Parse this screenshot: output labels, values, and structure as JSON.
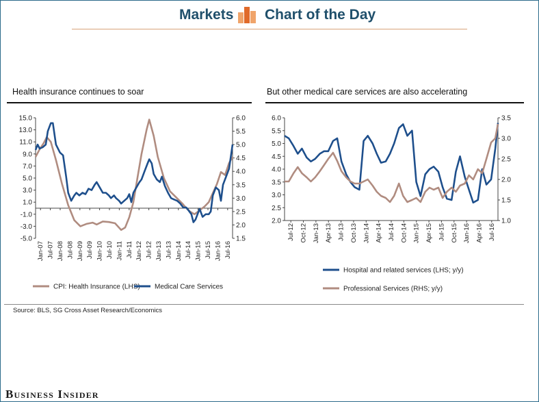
{
  "header": {
    "left_label": "Markets",
    "right_label": "Chart of the Day"
  },
  "colors": {
    "blue": "#1e4f8c",
    "tan": "#b08c80",
    "logo_light": "#f0a46a",
    "logo_dark": "#e06a2a"
  },
  "left_panel": {
    "title": "Health insurance continues to soar"
  },
  "right_panel": {
    "title": "But other medical care services are also accelerating"
  },
  "source": "Source: BLS, SG Cross Asset Research/Economics",
  "brand": "Business Insider",
  "chart_data": [
    {
      "type": "line",
      "title": "Health insurance continues to soar",
      "x_ticks": [
        "Jan-07",
        "Jul-07",
        "Jan-08",
        "Jul-08",
        "Jan-09",
        "Jul-09",
        "Jan-10",
        "Jul-10",
        "Jan-11",
        "Jul-11",
        "Jan-12",
        "Jul-12",
        "Jan-13",
        "Jul-13",
        "Jan-14",
        "Jul-14",
        "Jan-15",
        "Jul-15",
        "Jan-16",
        "Jul-16"
      ],
      "x_range": [
        2007.0,
        2016.67
      ],
      "left_axis": {
        "ticks": [
          "15.0",
          "13.0",
          "11.0",
          "9.0",
          "7.0",
          "5.0",
          "3.0",
          "1.0",
          "-1.0",
          "-3.0",
          "-5.0"
        ],
        "range": [
          -5,
          15
        ]
      },
      "right_axis": {
        "ticks": [
          "6.0",
          "5.5",
          "5.0",
          "4.5",
          "4.0",
          "3.5",
          "3.0",
          "2.5",
          "2.0",
          "1.5"
        ],
        "range": [
          1.5,
          6.0
        ]
      },
      "series": [
        {
          "name": "CPI:  Health Insurance (LHS)",
          "axis": "left",
          "color": "#b08c80",
          "points": [
            [
              2007.0,
              8.5
            ],
            [
              2007.2,
              9.8
            ],
            [
              2007.4,
              10.8
            ],
            [
              2007.55,
              11.8
            ],
            [
              2007.75,
              11.0
            ],
            [
              2008.0,
              8.0
            ],
            [
              2008.3,
              4.0
            ],
            [
              2008.6,
              0.5
            ],
            [
              2008.9,
              -2.0
            ],
            [
              2009.2,
              -3.0
            ],
            [
              2009.5,
              -2.6
            ],
            [
              2009.8,
              -2.4
            ],
            [
              2010.0,
              -2.7
            ],
            [
              2010.3,
              -2.2
            ],
            [
              2010.6,
              -2.3
            ],
            [
              2010.9,
              -2.5
            ],
            [
              2011.2,
              -3.6
            ],
            [
              2011.4,
              -3.2
            ],
            [
              2011.6,
              -1.5
            ],
            [
              2011.8,
              1.0
            ],
            [
              2012.0,
              5.0
            ],
            [
              2012.2,
              9.0
            ],
            [
              2012.45,
              13.0
            ],
            [
              2012.58,
              14.7
            ],
            [
              2012.8,
              12.0
            ],
            [
              2013.0,
              8.5
            ],
            [
              2013.3,
              5.0
            ],
            [
              2013.6,
              2.8
            ],
            [
              2013.9,
              1.8
            ],
            [
              2014.2,
              0.8
            ],
            [
              2014.4,
              0.0
            ],
            [
              2014.6,
              -0.6
            ],
            [
              2014.8,
              -1.0
            ],
            [
              2015.0,
              -0.5
            ],
            [
              2015.3,
              0.3
            ],
            [
              2015.5,
              1.0
            ],
            [
              2015.7,
              2.5
            ],
            [
              2015.9,
              4.0
            ],
            [
              2016.1,
              6.0
            ],
            [
              2016.3,
              5.5
            ],
            [
              2016.5,
              7.5
            ],
            [
              2016.67,
              8.5
            ]
          ]
        },
        {
          "name": "Medical Care Services",
          "axis": "right",
          "color": "#1e4f8c",
          "points": [
            [
              2007.0,
              4.8
            ],
            [
              2007.1,
              5.0
            ],
            [
              2007.2,
              4.85
            ],
            [
              2007.35,
              4.9
            ],
            [
              2007.5,
              5.0
            ],
            [
              2007.6,
              5.5
            ],
            [
              2007.75,
              5.8
            ],
            [
              2007.85,
              5.8
            ],
            [
              2008.0,
              5.0
            ],
            [
              2008.2,
              4.7
            ],
            [
              2008.35,
              4.6
            ],
            [
              2008.5,
              3.8
            ],
            [
              2008.6,
              3.2
            ],
            [
              2008.75,
              2.9
            ],
            [
              2008.9,
              3.1
            ],
            [
              2009.0,
              3.2
            ],
            [
              2009.15,
              3.1
            ],
            [
              2009.3,
              3.2
            ],
            [
              2009.45,
              3.15
            ],
            [
              2009.6,
              3.35
            ],
            [
              2009.75,
              3.3
            ],
            [
              2009.9,
              3.5
            ],
            [
              2010.0,
              3.6
            ],
            [
              2010.15,
              3.4
            ],
            [
              2010.3,
              3.2
            ],
            [
              2010.45,
              3.2
            ],
            [
              2010.6,
              3.1
            ],
            [
              2010.7,
              3.0
            ],
            [
              2010.85,
              3.1
            ],
            [
              2010.95,
              3.0
            ],
            [
              2011.1,
              2.9
            ],
            [
              2011.2,
              2.8
            ],
            [
              2011.35,
              2.9
            ],
            [
              2011.5,
              3.0
            ],
            [
              2011.6,
              3.15
            ],
            [
              2011.7,
              2.85
            ],
            [
              2011.8,
              3.2
            ],
            [
              2011.95,
              3.4
            ],
            [
              2012.1,
              3.6
            ],
            [
              2012.2,
              3.7
            ],
            [
              2012.35,
              4.0
            ],
            [
              2012.5,
              4.3
            ],
            [
              2012.58,
              4.45
            ],
            [
              2012.7,
              4.3
            ],
            [
              2012.8,
              3.9
            ],
            [
              2012.95,
              3.7
            ],
            [
              2013.1,
              3.6
            ],
            [
              2013.2,
              3.8
            ],
            [
              2013.35,
              3.45
            ],
            [
              2013.5,
              3.2
            ],
            [
              2013.65,
              3.0
            ],
            [
              2013.8,
              2.95
            ],
            [
              2013.95,
              2.9
            ],
            [
              2014.1,
              2.8
            ],
            [
              2014.25,
              2.65
            ],
            [
              2014.4,
              2.65
            ],
            [
              2014.5,
              2.55
            ],
            [
              2014.65,
              2.4
            ],
            [
              2014.75,
              2.1
            ],
            [
              2014.85,
              2.2
            ],
            [
              2014.95,
              2.4
            ],
            [
              2015.05,
              2.6
            ],
            [
              2015.2,
              2.3
            ],
            [
              2015.35,
              2.4
            ],
            [
              2015.5,
              2.4
            ],
            [
              2015.6,
              2.5
            ],
            [
              2015.7,
              3.1
            ],
            [
              2015.85,
              3.4
            ],
            [
              2016.0,
              3.3
            ],
            [
              2016.1,
              2.9
            ],
            [
              2016.2,
              3.5
            ],
            [
              2016.35,
              3.8
            ],
            [
              2016.5,
              4.1
            ],
            [
              2016.67,
              5.0
            ]
          ]
        }
      ]
    },
    {
      "type": "line",
      "title": "But other medical care services are also accelerating",
      "x_ticks": [
        "Jul-12",
        "Oct-12",
        "Jan-13",
        "Apr-13",
        "Jul-13",
        "Oct-13",
        "Jan-14",
        "Apr-14",
        "Jul-14",
        "Oct-14",
        "Jan-15",
        "Apr-15",
        "Jul-15",
        "Oct-15",
        "Jan-16",
        "Apr-16",
        "Jul-16"
      ],
      "x_range": [
        2012.5,
        2016.55
      ],
      "left_axis": {
        "ticks": [
          "6.0",
          "5.5",
          "5.0",
          "4.5",
          "4.0",
          "3.5",
          "3.0",
          "2.5",
          "2.0"
        ],
        "range": [
          2.0,
          6.0
        ]
      },
      "right_axis": {
        "ticks": [
          "3.5",
          "3.0",
          "2.5",
          "2.0",
          "1.5",
          "1.0"
        ],
        "range": [
          1.0,
          3.5
        ]
      },
      "series": [
        {
          "name": "Hospital and related services (LHS; y/y)",
          "axis": "left",
          "color": "#1e4f8c",
          "points": [
            [
              2012.5,
              5.3
            ],
            [
              2012.58,
              5.2
            ],
            [
              2012.67,
              4.9
            ],
            [
              2012.75,
              4.6
            ],
            [
              2012.83,
              4.8
            ],
            [
              2012.92,
              4.45
            ],
            [
              2013.0,
              4.3
            ],
            [
              2013.08,
              4.4
            ],
            [
              2013.17,
              4.6
            ],
            [
              2013.25,
              4.7
            ],
            [
              2013.33,
              4.7
            ],
            [
              2013.42,
              5.1
            ],
            [
              2013.5,
              5.2
            ],
            [
              2013.58,
              4.3
            ],
            [
              2013.67,
              3.8
            ],
            [
              2013.75,
              3.5
            ],
            [
              2013.83,
              3.3
            ],
            [
              2013.92,
              3.2
            ],
            [
              2014.0,
              5.1
            ],
            [
              2014.08,
              5.3
            ],
            [
              2014.17,
              5.0
            ],
            [
              2014.25,
              4.6
            ],
            [
              2014.33,
              4.25
            ],
            [
              2014.42,
              4.3
            ],
            [
              2014.5,
              4.6
            ],
            [
              2014.58,
              5.0
            ],
            [
              2014.67,
              5.6
            ],
            [
              2014.75,
              5.75
            ],
            [
              2014.83,
              5.3
            ],
            [
              2014.92,
              5.5
            ],
            [
              2015.0,
              3.5
            ],
            [
              2015.08,
              2.95
            ],
            [
              2015.17,
              3.8
            ],
            [
              2015.25,
              4.0
            ],
            [
              2015.33,
              4.1
            ],
            [
              2015.42,
              3.9
            ],
            [
              2015.5,
              3.3
            ],
            [
              2015.58,
              2.85
            ],
            [
              2015.67,
              2.8
            ],
            [
              2015.75,
              3.9
            ],
            [
              2015.83,
              4.5
            ],
            [
              2015.92,
              3.7
            ],
            [
              2016.0,
              3.2
            ],
            [
              2016.08,
              2.7
            ],
            [
              2016.17,
              2.8
            ],
            [
              2016.25,
              4.0
            ],
            [
              2016.33,
              3.4
            ],
            [
              2016.42,
              3.6
            ],
            [
              2016.5,
              4.8
            ],
            [
              2016.55,
              5.8
            ]
          ]
        },
        {
          "name": "Professional Services (RHS; y/y)",
          "axis": "right",
          "color": "#b08c80",
          "points": [
            [
              2012.5,
              1.95
            ],
            [
              2012.58,
              1.95
            ],
            [
              2012.67,
              2.15
            ],
            [
              2012.75,
              2.3
            ],
            [
              2012.83,
              2.15
            ],
            [
              2012.92,
              2.05
            ],
            [
              2013.0,
              1.95
            ],
            [
              2013.08,
              2.05
            ],
            [
              2013.17,
              2.2
            ],
            [
              2013.25,
              2.35
            ],
            [
              2013.33,
              2.5
            ],
            [
              2013.42,
              2.65
            ],
            [
              2013.5,
              2.45
            ],
            [
              2013.58,
              2.2
            ],
            [
              2013.67,
              2.05
            ],
            [
              2013.75,
              1.95
            ],
            [
              2013.83,
              1.9
            ],
            [
              2013.92,
              1.9
            ],
            [
              2014.0,
              1.95
            ],
            [
              2014.08,
              2.0
            ],
            [
              2014.17,
              1.85
            ],
            [
              2014.25,
              1.7
            ],
            [
              2014.33,
              1.6
            ],
            [
              2014.42,
              1.55
            ],
            [
              2014.5,
              1.45
            ],
            [
              2014.58,
              1.6
            ],
            [
              2014.67,
              1.9
            ],
            [
              2014.75,
              1.6
            ],
            [
              2014.83,
              1.45
            ],
            [
              2014.92,
              1.5
            ],
            [
              2015.0,
              1.55
            ],
            [
              2015.08,
              1.45
            ],
            [
              2015.17,
              1.7
            ],
            [
              2015.25,
              1.8
            ],
            [
              2015.33,
              1.75
            ],
            [
              2015.42,
              1.8
            ],
            [
              2015.5,
              1.55
            ],
            [
              2015.58,
              1.7
            ],
            [
              2015.67,
              1.8
            ],
            [
              2015.75,
              1.7
            ],
            [
              2015.83,
              1.85
            ],
            [
              2015.92,
              1.9
            ],
            [
              2016.0,
              2.1
            ],
            [
              2016.08,
              2.0
            ],
            [
              2016.17,
              2.25
            ],
            [
              2016.25,
              2.15
            ],
            [
              2016.33,
              2.5
            ],
            [
              2016.42,
              2.9
            ],
            [
              2016.5,
              3.0
            ],
            [
              2016.55,
              3.35
            ]
          ]
        }
      ]
    }
  ]
}
